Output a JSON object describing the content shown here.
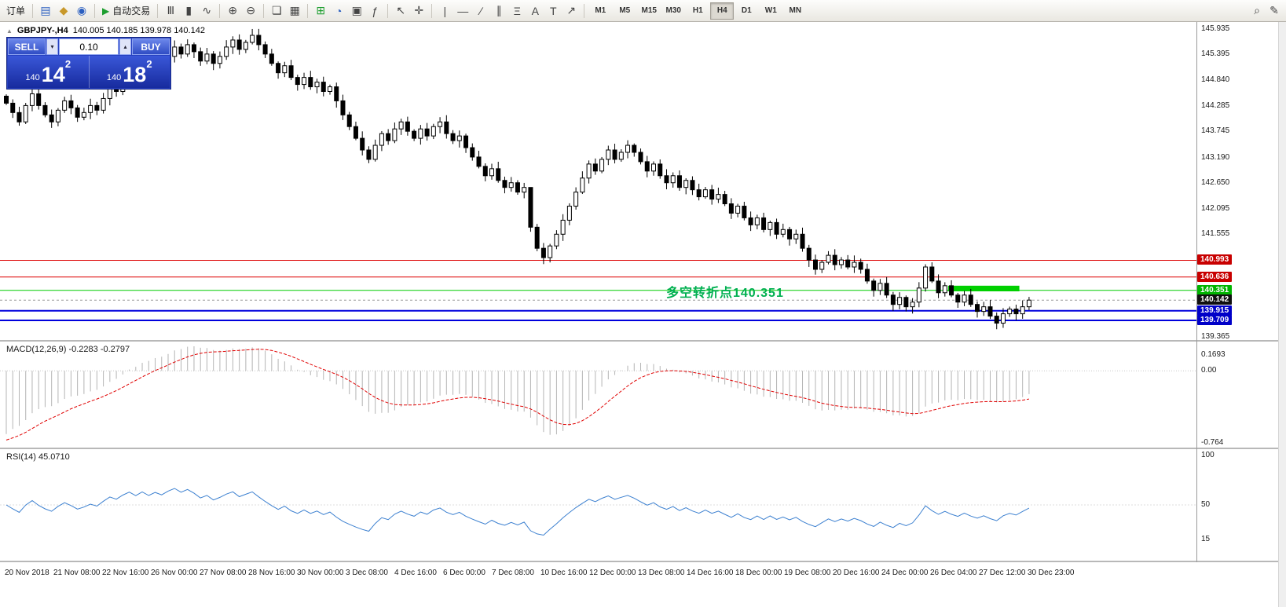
{
  "toolbar": {
    "order_label": "订单",
    "autotrade_label": "自动交易",
    "timeframes": [
      "M1",
      "M5",
      "M15",
      "M30",
      "H1",
      "H4",
      "D1",
      "W1",
      "MN"
    ],
    "active_timeframe": "H4"
  },
  "icons": {
    "panel_toggle": "▲",
    "charts": "▤",
    "profile": "◆",
    "terminal": "◉",
    "play": "▶",
    "bar_chart": "Ⅲ",
    "candles": "▮",
    "line_chart": "∿",
    "zoom_in": "⊕",
    "zoom_out": "⊖",
    "cascade": "❏",
    "tile": "▦",
    "new_chart": "⊞",
    "period": "◔",
    "template": "▣",
    "indicators": "ƒ",
    "cursor": "↖",
    "crosshair": "✛",
    "vline": "|",
    "hline": "—",
    "trendline": "∕",
    "channel": "∥",
    "fibonacci": "Ξ",
    "text": "A",
    "label": "T",
    "arrow": "↗",
    "search": "⌕",
    "edit": "✎",
    "spin_up": "▴",
    "spin_down": "▾"
  },
  "chart": {
    "title_symbol": "GBPJPY-,H4",
    "title_ohlc": "140.005 140.185 139.978 140.142"
  },
  "trade_panel": {
    "sell_label": "SELL",
    "buy_label": "BUY",
    "volume": "0.10",
    "sell_price_prefix": "140",
    "sell_price_big": "14",
    "sell_price_sup": "2",
    "buy_price_prefix": "140",
    "buy_price_big": "18",
    "buy_price_sup": "2"
  },
  "annotation": {
    "text": "多空转折点140.351",
    "color": "#00B050"
  },
  "indicators": {
    "macd_label": "MACD(12,26,9) -0.2283 -0.2797",
    "rsi_label": "RSI(14) 45.0710"
  },
  "chart_data": {
    "type": "candlestick",
    "symbol": "GBPJPY-",
    "timeframe": "H4",
    "ohlc": {
      "open": 140.005,
      "high": 140.185,
      "low": 139.978,
      "close": 140.142
    },
    "first_open": 144.5,
    "closes": [
      144.35,
      144.15,
      143.95,
      144.3,
      144.55,
      144.3,
      144.1,
      143.95,
      144.2,
      144.4,
      144.25,
      144.05,
      144.15,
      144.3,
      144.2,
      144.45,
      144.7,
      144.6,
      144.85,
      145.05,
      144.9,
      145.15,
      145.0,
      145.2,
      145.1,
      145.35,
      145.55,
      145.4,
      145.6,
      145.45,
      145.25,
      145.4,
      145.2,
      145.35,
      145.55,
      145.7,
      145.5,
      145.65,
      145.8,
      145.6,
      145.4,
      145.2,
      145.0,
      145.15,
      144.9,
      144.75,
      144.9,
      144.7,
      144.8,
      144.6,
      144.7,
      144.4,
      144.1,
      143.85,
      143.6,
      143.35,
      143.15,
      143.45,
      143.7,
      143.55,
      143.8,
      143.95,
      143.75,
      143.6,
      143.8,
      143.65,
      143.85,
      143.95,
      143.7,
      143.55,
      143.65,
      143.4,
      143.2,
      143.0,
      142.8,
      142.95,
      142.7,
      142.55,
      142.65,
      142.45,
      142.55,
      141.7,
      141.25,
      141.05,
      141.3,
      141.55,
      141.85,
      142.15,
      142.45,
      142.75,
      143.05,
      142.9,
      143.15,
      143.35,
      143.15,
      143.3,
      143.45,
      143.3,
      143.1,
      142.9,
      143.05,
      142.8,
      142.65,
      142.8,
      142.55,
      142.7,
      142.5,
      142.35,
      142.5,
      142.3,
      142.4,
      142.2,
      142.0,
      142.15,
      141.9,
      141.75,
      141.9,
      141.65,
      141.8,
      141.55,
      141.65,
      141.45,
      141.55,
      141.25,
      141.0,
      140.8,
      140.95,
      141.1,
      140.9,
      141.0,
      140.85,
      140.95,
      140.8,
      140.55,
      140.35,
      140.5,
      140.25,
      140.05,
      140.2,
      140.0,
      140.1,
      140.4,
      140.85,
      140.55,
      140.3,
      140.45,
      140.25,
      140.1,
      140.25,
      140.05,
      139.9,
      140.0,
      139.8,
      139.65,
      139.85,
      139.95,
      139.85,
      140.0,
      140.142
    ],
    "wick_overrides": {
      "38": {
        "high": 145.935
      },
      "81": {
        "high": 142.45
      },
      "139": {
        "low": 139.9
      },
      "153": {
        "low": 139.52
      }
    },
    "y_ticks": [
      {
        "p": 145.935,
        "label": "145.935"
      },
      {
        "p": 145.395,
        "label": "145.395"
      },
      {
        "p": 144.84,
        "label": "144.840"
      },
      {
        "p": 144.285,
        "label": "144.285"
      },
      {
        "p": 143.745,
        "label": "143.745"
      },
      {
        "p": 143.19,
        "label": "143.190"
      },
      {
        "p": 142.65,
        "label": "142.650"
      },
      {
        "p": 142.095,
        "label": "142.095"
      },
      {
        "p": 141.555,
        "label": "141.555"
      },
      {
        "p": 139.365,
        "label": "139.365"
      }
    ],
    "levels": [
      {
        "price": 140.993,
        "label": "140.993",
        "line": "#DD0000",
        "badge": "#C80000",
        "width": 1
      },
      {
        "price": 140.636,
        "label": "140.636",
        "line": "#DD0000",
        "badge": "#C80000",
        "width": 1
      },
      {
        "price": 140.351,
        "label": "140.351",
        "line": "#00CC00",
        "badge": "#00B400",
        "width": 1
      },
      {
        "price": 140.142,
        "label": "140.142",
        "line": "#999999",
        "badge": "#101010",
        "width": 1,
        "dashed": true,
        "current": true
      },
      {
        "price": 139.915,
        "label": "139.915",
        "line": "#0000DD",
        "badge": "#0000C8",
        "width": 2
      },
      {
        "price": 139.709,
        "label": "139.709",
        "line": "#0000DD",
        "badge": "#0000C8",
        "width": 2
      }
    ],
    "highlight_rect": {
      "bar_from": 145.5,
      "bar_to": 156.5,
      "price_top": 140.45,
      "price_bottom": 140.33,
      "color": "#00D000"
    },
    "x_labels": [
      "20 Nov 2018",
      "21 Nov 08:00",
      "22 Nov 16:00",
      "26 Nov 00:00",
      "27 Nov 08:00",
      "28 Nov 16:00",
      "30 Nov 00:00",
      "3 Dec 08:00",
      "4 Dec 16:00",
      "6 Dec 00:00",
      "7 Dec 08:00",
      "10 Dec 16:00",
      "12 Dec 00:00",
      "13 Dec 08:00",
      "14 Dec 16:00",
      "18 Dec 00:00",
      "19 Dec 08:00",
      "20 Dec 16:00",
      "24 Dec 00:00",
      "26 Dec 04:00",
      "27 Dec 12:00",
      "30 Dec 23:00"
    ],
    "macd": {
      "params": "12,26,9",
      "current_values": [
        -0.2283,
        -0.2797
      ],
      "axis": [
        {
          "v": 0.1693,
          "label": "0.1693"
        },
        {
          "v": 0.0,
          "label": "0.00"
        },
        {
          "v": -0.764,
          "label": "-0.764"
        }
      ]
    },
    "rsi": {
      "params": "14",
      "current_value": 45.071,
      "axis": [
        {
          "v": 100,
          "label": "100"
        },
        {
          "v": 50,
          "label": "50"
        },
        {
          "v": 15,
          "label": "15"
        }
      ]
    }
  }
}
